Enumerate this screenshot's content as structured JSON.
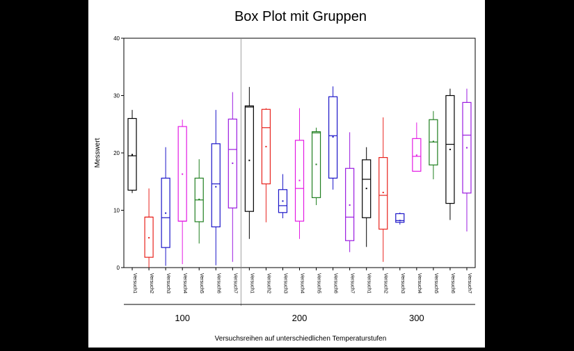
{
  "chart_data": {
    "type": "box",
    "title": "Box Plot mit Gruppen",
    "xlabel": "Versuchsreihen auf unterschiedlichen Temperaturstufen",
    "ylabel": "Messwert",
    "ylim": [
      0,
      40
    ],
    "yticks": [
      0,
      10,
      20,
      30,
      40
    ],
    "groups": [
      {
        "label": "100",
        "boxes": [
          {
            "name": "Versuch1",
            "color": "#000000",
            "min": 13,
            "q1": 13.5,
            "median": 19.5,
            "q3": 26,
            "max": 27.5,
            "mean": 19.7
          },
          {
            "name": "Versuch2",
            "color": "#e8221c",
            "min": 0,
            "q1": 1.8,
            "median": 8.8,
            "q3": 8.8,
            "max": 13.8,
            "mean": 5.2
          },
          {
            "name": "Versuch3",
            "color": "#1a14c8",
            "min": 0.3,
            "q1": 3.5,
            "median": 8.7,
            "q3": 15.6,
            "max": 21,
            "mean": 9.5
          },
          {
            "name": "Versuch4",
            "color": "#e41ae4",
            "min": 0.6,
            "q1": 8.1,
            "median": 8.1,
            "q3": 24.6,
            "max": 25.8,
            "mean": 16.3
          },
          {
            "name": "Versuch5",
            "color": "#1e7e1e",
            "min": 4.2,
            "q1": 8,
            "median": 11.8,
            "q3": 15.6,
            "max": 18.9,
            "mean": 11.9
          },
          {
            "name": "Versuch6",
            "color": "#1a14c8",
            "min": 0.4,
            "q1": 7.1,
            "median": 14.6,
            "q3": 21.6,
            "max": 27.5,
            "mean": 14.1
          },
          {
            "name": "Versuch7",
            "color": "#9a1ae0",
            "min": 1,
            "q1": 10.4,
            "median": 20.6,
            "q3": 25.9,
            "max": 30.6,
            "mean": 18.2
          }
        ]
      },
      {
        "label": "200",
        "boxes": [
          {
            "name": "Versuch1",
            "color": "#000000",
            "min": 5,
            "q1": 9.8,
            "median": 28,
            "q3": 28.2,
            "max": 31.5,
            "mean": 18.7
          },
          {
            "name": "Versuch2",
            "color": "#e8221c",
            "min": 7.9,
            "q1": 14.6,
            "median": 24.4,
            "q3": 27.6,
            "max": 27.8,
            "mean": 21.1
          },
          {
            "name": "Versuch3",
            "color": "#1a14c8",
            "min": 8.6,
            "q1": 9.6,
            "median": 10.8,
            "q3": 13.6,
            "max": 16.3,
            "mean": 11.6
          },
          {
            "name": "Versuch4",
            "color": "#e41ae4",
            "min": 5,
            "q1": 8.1,
            "median": 13.8,
            "q3": 22.2,
            "max": 27.8,
            "mean": 15.2
          },
          {
            "name": "Versuch5",
            "color": "#1e7e1e",
            "min": 10.9,
            "q1": 12.2,
            "median": 23.5,
            "q3": 23.7,
            "max": 24.4,
            "mean": 18
          },
          {
            "name": "Versuch6",
            "color": "#1a14c8",
            "min": 13.6,
            "q1": 15.6,
            "median": 23,
            "q3": 29.8,
            "max": 31.6,
            "mean": 22.8
          },
          {
            "name": "Versuch7",
            "color": "#9a1ae0",
            "min": 2.7,
            "q1": 4.7,
            "median": 8.8,
            "q3": 17.3,
            "max": 23.6,
            "mean": 10.9
          }
        ]
      },
      {
        "label": "300",
        "boxes": [
          {
            "name": "Versuch1",
            "color": "#000000",
            "min": 3.6,
            "q1": 8.7,
            "median": 15.4,
            "q3": 18.8,
            "max": 21,
            "mean": 13.8
          },
          {
            "name": "Versuch2",
            "color": "#e8221c",
            "min": 1,
            "q1": 6.7,
            "median": 12.6,
            "q3": 19.2,
            "max": 26.2,
            "mean": 13.1
          },
          {
            "name": "Versuch3",
            "color": "#1a14c8",
            "min": 7.5,
            "q1": 7.9,
            "median": 8.2,
            "q3": 9.4,
            "max": 9.6,
            "mean": 8.2
          },
          {
            "name": "Versuch4",
            "color": "#e41ae4",
            "min": 16.8,
            "q1": 16.8,
            "median": 19.4,
            "q3": 22.5,
            "max": 25.3,
            "mean": 19.6
          },
          {
            "name": "Versuch5",
            "color": "#1e7e1e",
            "min": 15.4,
            "q1": 17.9,
            "median": 21.9,
            "q3": 25.8,
            "max": 27.3,
            "mean": 22
          },
          {
            "name": "Versuch6",
            "color": "#000000",
            "min": 8.3,
            "q1": 11.2,
            "median": 21.5,
            "q3": 30,
            "max": 31.2,
            "mean": 20.6
          },
          {
            "name": "Versuch7",
            "color": "#9a1ae0",
            "min": 6.3,
            "q1": 13,
            "median": 23.1,
            "q3": 28.8,
            "max": 31.2,
            "mean": 20.9
          }
        ]
      }
    ]
  }
}
